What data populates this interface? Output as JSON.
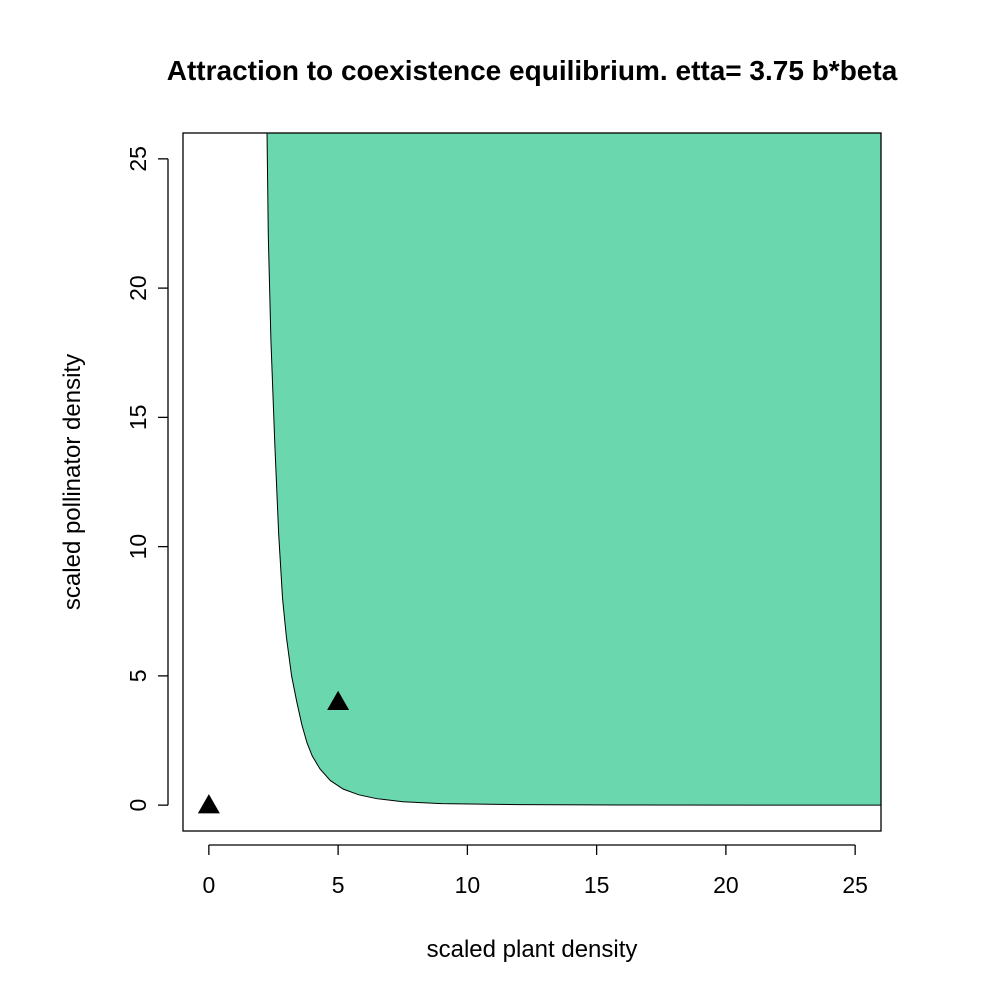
{
  "chart_data": {
    "type": "area",
    "title": "Attraction to coexistence equilibrium. etta= 3.75 b*beta",
    "xlabel": "scaled plant density",
    "ylabel": "scaled pollinator density",
    "xlim": [
      -1,
      26
    ],
    "ylim": [
      -1,
      26
    ],
    "x_ticks": [
      0,
      5,
      10,
      15,
      20,
      25
    ],
    "y_ticks": [
      0,
      5,
      10,
      15,
      20,
      25
    ],
    "x_tick_labels": [
      "0",
      "5",
      "10",
      "15",
      "20",
      "25"
    ],
    "y_tick_labels": [
      "0",
      "5",
      "10",
      "15",
      "20",
      "25"
    ],
    "region": {
      "name": "basin of attraction",
      "color": "#6AD7AE",
      "boundary": [
        [
          2.25,
          26
        ],
        [
          2.3,
          22
        ],
        [
          2.4,
          18
        ],
        [
          2.55,
          14
        ],
        [
          2.7,
          10.5
        ],
        [
          2.85,
          8
        ],
        [
          3.0,
          6.5
        ],
        [
          3.2,
          5
        ],
        [
          3.4,
          4
        ],
        [
          3.6,
          3.1
        ],
        [
          3.8,
          2.4
        ],
        [
          4.0,
          1.9
        ],
        [
          4.3,
          1.4
        ],
        [
          4.7,
          0.95
        ],
        [
          5.2,
          0.62
        ],
        [
          5.8,
          0.4
        ],
        [
          6.5,
          0.25
        ],
        [
          7.5,
          0.13
        ],
        [
          9,
          0.06
        ],
        [
          12,
          0.02
        ],
        [
          16,
          0.008
        ],
        [
          21,
          0.003
        ],
        [
          26,
          0.001
        ]
      ]
    },
    "points": [
      {
        "name": "origin equilibrium",
        "x": 0,
        "y": 0,
        "marker": "triangle"
      },
      {
        "name": "coexistence equilibrium",
        "x": 5,
        "y": 4,
        "marker": "triangle"
      }
    ],
    "grid": false
  }
}
